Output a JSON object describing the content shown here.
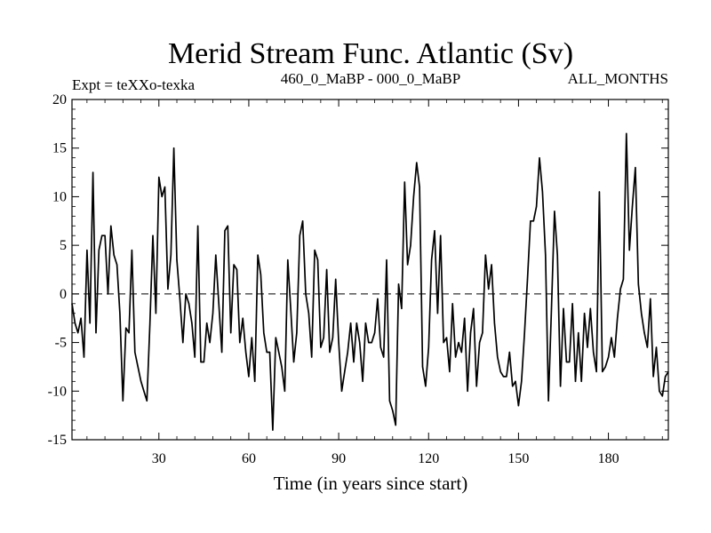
{
  "chart_data": {
    "type": "line",
    "title": "Merid Stream Func. Atlantic (Sv)",
    "experiment": "Expt = teXXo-texka",
    "period": "460_0_MaBP - 000_0_MaBP",
    "season": "ALL_MONTHS",
    "xlabel": "Time (in years since start)",
    "ylabel": "",
    "xlim": [
      1,
      200
    ],
    "ylim": [
      -15,
      20
    ],
    "xticks": [
      30,
      60,
      90,
      120,
      150,
      180
    ],
    "yticks": [
      -15,
      -10,
      -5,
      0,
      5,
      10,
      15,
      20
    ],
    "zero_line": true,
    "series": [
      {
        "name": "Merid Stream Func. Atlantic",
        "x": [
          1,
          2,
          3,
          4,
          5,
          6,
          7,
          8,
          9,
          10,
          11,
          12,
          13,
          14,
          15,
          16,
          17,
          18,
          19,
          20,
          21,
          22,
          23,
          24,
          25,
          26,
          27,
          28,
          29,
          30,
          31,
          32,
          33,
          34,
          35,
          36,
          37,
          38,
          39,
          40,
          41,
          42,
          43,
          44,
          45,
          46,
          47,
          48,
          49,
          50,
          51,
          52,
          53,
          54,
          55,
          56,
          57,
          58,
          59,
          60,
          61,
          62,
          63,
          64,
          65,
          66,
          67,
          68,
          69,
          70,
          71,
          72,
          73,
          74,
          75,
          76,
          77,
          78,
          79,
          80,
          81,
          82,
          83,
          84,
          85,
          86,
          87,
          88,
          89,
          90,
          91,
          92,
          93,
          94,
          95,
          96,
          97,
          98,
          99,
          100,
          101,
          102,
          103,
          104,
          105,
          106,
          107,
          108,
          109,
          110,
          111,
          112,
          113,
          114,
          115,
          116,
          117,
          118,
          119,
          120,
          121,
          122,
          123,
          124,
          125,
          126,
          127,
          128,
          129,
          130,
          131,
          132,
          133,
          134,
          135,
          136,
          137,
          138,
          139,
          140,
          141,
          142,
          143,
          144,
          145,
          146,
          147,
          148,
          149,
          150,
          151,
          152,
          153,
          154,
          155,
          156,
          157,
          158,
          159,
          160,
          161,
          162,
          163,
          164,
          165,
          166,
          167,
          168,
          169,
          170,
          171,
          172,
          173,
          174,
          175,
          176,
          177,
          178,
          179,
          180,
          181,
          182,
          183,
          184,
          185,
          186,
          187,
          188,
          189,
          190,
          191,
          192,
          193,
          194,
          195,
          196,
          197,
          198,
          199,
          200
        ],
        "values": [
          -1,
          -3,
          -4,
          -2.5,
          -6.5,
          4.5,
          -3,
          12.5,
          -4,
          4.5,
          6,
          6,
          0,
          7,
          4,
          3,
          -2,
          -11,
          -3.5,
          -4,
          4.5,
          -6,
          -7.5,
          -9,
          -10,
          -11,
          -3,
          6,
          -2,
          12,
          10,
          11,
          0.5,
          4,
          15,
          3.5,
          -0.5,
          -5,
          0,
          -1,
          -3,
          -6.5,
          7,
          -7,
          -7,
          -3,
          -5,
          -2,
          4,
          -1,
          -6,
          6.5,
          7,
          -4,
          3,
          2.5,
          -5,
          -2.5,
          -6,
          -8.5,
          -4.5,
          -9,
          4,
          2,
          -4,
          -6,
          -6,
          -14,
          -4.5,
          -6,
          -7.5,
          -10,
          3.5,
          -1.5,
          -7,
          -4,
          6,
          7.5,
          0,
          -2,
          -6.5,
          4.5,
          3.5,
          -5.5,
          -4.5,
          2.5,
          -6,
          -4.5,
          1.5,
          -5,
          -10,
          -8,
          -6,
          -3,
          -7,
          -3,
          -5,
          -9,
          -3,
          -5,
          -5,
          -4,
          -0.5,
          -5.5,
          -6.5,
          3.5,
          -11,
          -12,
          -13.5,
          1,
          -1.5,
          11.5,
          3,
          5,
          10,
          13.5,
          11,
          -7.5,
          -9.5,
          -5.5,
          3.5,
          6.5,
          -2,
          6,
          -5,
          -4.5,
          -8,
          -1,
          -6.5,
          -5,
          -6,
          -2.5,
          -10,
          -4,
          -1.5,
          -9.5,
          -5,
          -4,
          4,
          0.5,
          3,
          -3,
          -6.5,
          -8,
          -8.5,
          -8.5,
          -6,
          -9.5,
          -9,
          -11.5,
          -9,
          -4,
          1.5,
          7.5,
          7.5,
          9,
          14,
          10.5,
          4,
          -11,
          -1.5,
          8.5,
          4,
          -9.5,
          -1.5,
          -7,
          -7,
          -1,
          -9,
          -4,
          -9,
          -2,
          -5.5,
          -1.5,
          -6,
          -8,
          10.5,
          -8,
          -7.5,
          -6.5,
          -4.5,
          -6.5,
          -2.5,
          0.5,
          1.5,
          16.5,
          4.5,
          9,
          13,
          1,
          -2,
          -4,
          -5.5,
          -0.5,
          -8.5,
          -5.5,
          -10,
          -10.5,
          -8.5,
          -8
        ]
      }
    ]
  }
}
